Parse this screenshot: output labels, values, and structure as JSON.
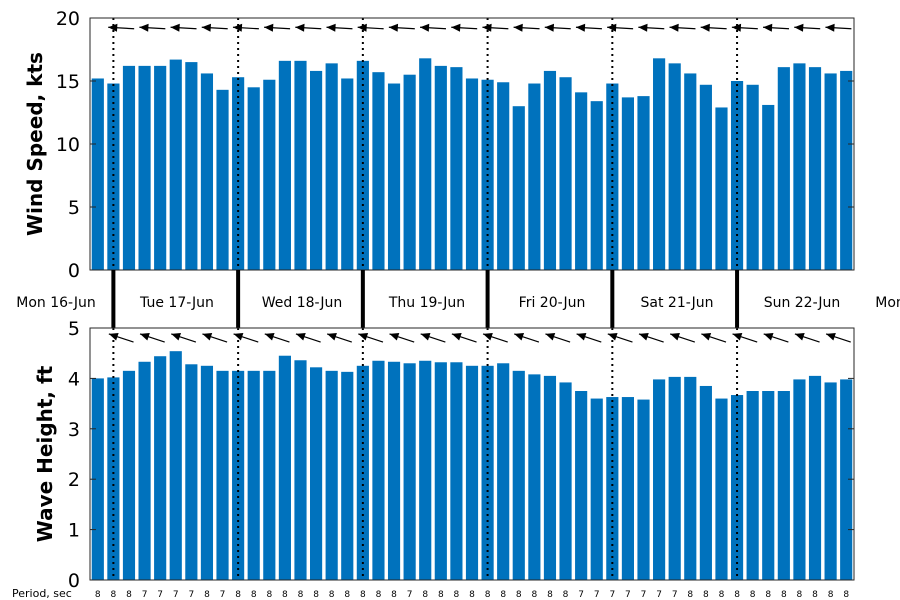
{
  "chart_data": [
    {
      "type": "bar",
      "ylabel": "Wind Speed, kts",
      "ylim": [
        0,
        20
      ],
      "yticks": [
        0,
        5,
        10,
        15,
        20
      ],
      "bar_color": "#0072BD",
      "values": [
        15.2,
        14.8,
        16.2,
        16.2,
        16.2,
        16.7,
        16.5,
        15.6,
        14.3,
        15.3,
        14.5,
        15.1,
        16.6,
        16.6,
        15.8,
        16.4,
        15.2,
        16.6,
        15.7,
        14.8,
        15.5,
        16.8,
        16.2,
        16.1,
        15.2,
        15.1,
        14.9,
        13.0,
        14.8,
        15.8,
        15.3,
        14.1,
        13.4,
        14.8,
        13.7,
        13.8,
        16.8,
        16.4,
        15.6,
        14.7,
        12.9,
        15.0,
        14.7,
        13.1,
        16.1,
        16.4,
        16.1,
        15.6,
        15.8
      ],
      "direction_arrows": "yes"
    },
    {
      "type": "bar",
      "ylabel": "Wave Height, ft",
      "ylim": [
        0,
        5
      ],
      "yticks": [
        0,
        1,
        2,
        3,
        4,
        5
      ],
      "bar_color": "#0072BD",
      "values": [
        4.0,
        4.02,
        4.15,
        4.33,
        4.44,
        4.54,
        4.28,
        4.25,
        4.15,
        4.15,
        4.15,
        4.15,
        4.45,
        4.36,
        4.22,
        4.15,
        4.13,
        4.25,
        4.35,
        4.33,
        4.3,
        4.35,
        4.32,
        4.32,
        4.25,
        4.25,
        4.3,
        4.15,
        4.08,
        4.05,
        3.92,
        3.75,
        3.6,
        3.63,
        3.63,
        3.58,
        3.98,
        4.03,
        4.03,
        3.85,
        3.6,
        3.67,
        3.75,
        3.75,
        3.75,
        3.98,
        4.05,
        3.92,
        3.98
      ],
      "direction_arrows": "yes"
    }
  ],
  "days": [
    "Mon 16-Jun",
    "Tue 17-Jun",
    "Wed 18-Jun",
    "Thu 19-Jun",
    "Fri 20-Jun",
    "Sat 21-Jun",
    "Sun 22-Jun",
    "Mon"
  ],
  "period": {
    "label": "Period, sec",
    "values": [
      "8",
      "8",
      "8",
      "7",
      "7",
      "7",
      "7",
      "8",
      "7",
      "8",
      "8",
      "8",
      "8",
      "8",
      "8",
      "8",
      "8",
      "8",
      "8",
      "8",
      "7",
      "8",
      "8",
      "8",
      "8",
      "8",
      "8",
      "8",
      "8",
      "8",
      "8",
      "7",
      "7",
      "7",
      "7",
      "7",
      "7",
      "7",
      "8",
      "8",
      "8",
      "8",
      "8",
      "8",
      "8",
      "8",
      "8",
      "8",
      "8"
    ]
  }
}
